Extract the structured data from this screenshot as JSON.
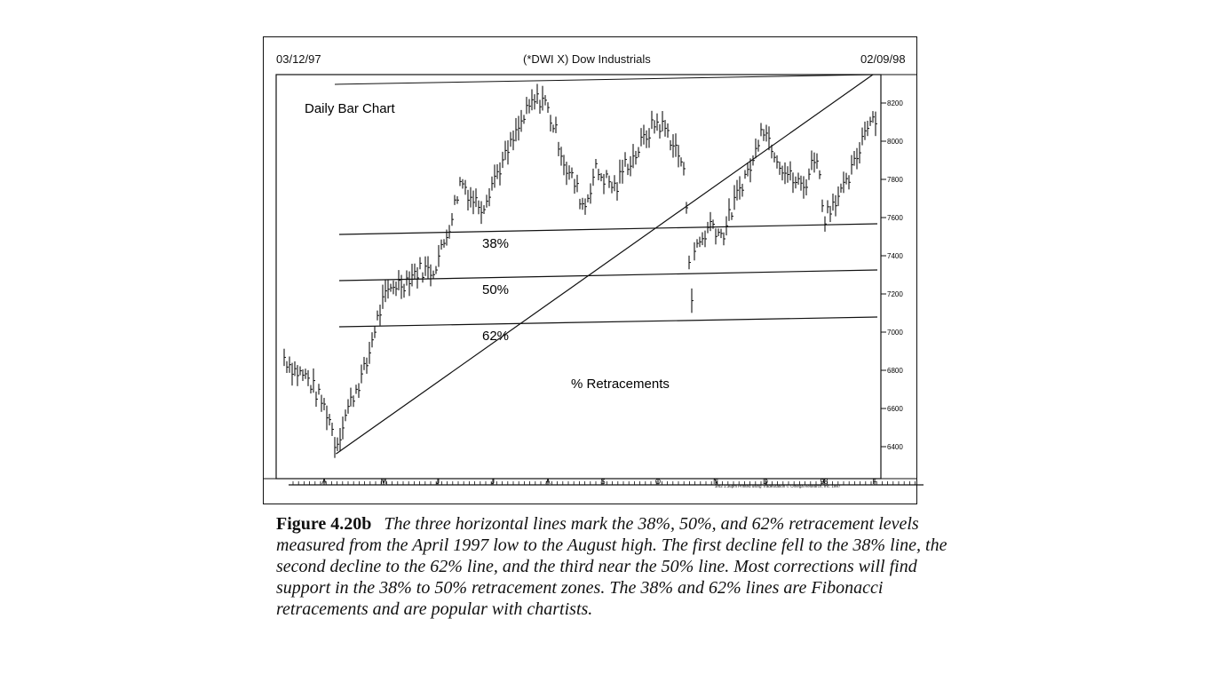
{
  "header": {
    "start_date": "03/12/97",
    "symbol_title": "(*DWI X) Dow Industrials",
    "end_date": "02/09/98"
  },
  "chart_data": {
    "type": "ohlc-bar",
    "title": "(*DWI X) Dow Industrials",
    "subtitle": "Daily Bar Chart",
    "annotation": "% Retracements",
    "credit": "3/02 1:36pm Printed using TradeStation © Omega Research, Inc. 1997",
    "x_tick_labels": [
      "A",
      "M",
      "J",
      "J",
      "A",
      "S",
      "O",
      "N",
      "D",
      "98",
      "F"
    ],
    "y_tick_labels": [
      "8200",
      "8000",
      "7800",
      "7600",
      "7400",
      "7200",
      "7000",
      "6800",
      "6600",
      "6400"
    ],
    "ylim": [
      6300,
      8300
    ],
    "retracement_levels": [
      {
        "label": "38%",
        "value": 7560
      },
      {
        "label": "50%",
        "value": 7325
      },
      {
        "label": "62%",
        "value": 7090
      }
    ],
    "trendline": {
      "from": {
        "date": "1997-04-11",
        "value": 6390
      },
      "to": {
        "date": "1998-02-06",
        "value": 8330
      }
    },
    "series": [
      {
        "values": [
          [
            "1997-03-12",
            6880
          ],
          [
            "1997-03-19",
            6800
          ],
          [
            "1997-03-26",
            6760
          ],
          [
            "1997-04-02",
            6650
          ],
          [
            "1997-04-07",
            6560
          ],
          [
            "1997-04-11",
            6400
          ],
          [
            "1997-04-16",
            6560
          ],
          [
            "1997-04-22",
            6700
          ],
          [
            "1997-04-28",
            6820
          ],
          [
            "1997-05-02",
            7000
          ],
          [
            "1997-05-07",
            7150
          ],
          [
            "1997-05-13",
            7250
          ],
          [
            "1997-05-19",
            7260
          ],
          [
            "1997-05-23",
            7300
          ],
          [
            "1997-05-29",
            7330
          ],
          [
            "1997-06-04",
            7320
          ],
          [
            "1997-06-10",
            7450
          ],
          [
            "1997-06-16",
            7650
          ],
          [
            "1997-06-20",
            7800
          ],
          [
            "1997-06-26",
            7700
          ],
          [
            "1997-07-02",
            7660
          ],
          [
            "1997-07-08",
            7800
          ],
          [
            "1997-07-14",
            7900
          ],
          [
            "1997-07-18",
            7980
          ],
          [
            "1997-07-24",
            8100
          ],
          [
            "1997-07-30",
            8200
          ],
          [
            "1997-08-05",
            8230
          ],
          [
            "1997-08-08",
            8150
          ],
          [
            "1997-08-13",
            8020
          ],
          [
            "1997-08-18",
            7850
          ],
          [
            "1997-08-22",
            7790
          ],
          [
            "1997-08-28",
            7650
          ],
          [
            "1997-09-03",
            7850
          ],
          [
            "1997-09-09",
            7800
          ],
          [
            "1997-09-15",
            7750
          ],
          [
            "1997-09-19",
            7870
          ],
          [
            "1997-09-25",
            7920
          ],
          [
            "1997-10-01",
            8020
          ],
          [
            "1997-10-07",
            8100
          ],
          [
            "1997-10-13",
            8060
          ],
          [
            "1997-10-17",
            7980
          ],
          [
            "1997-10-22",
            7880
          ],
          [
            "1997-10-24",
            7700
          ],
          [
            "1997-10-27",
            7160
          ],
          [
            "1997-10-29",
            7450
          ],
          [
            "1997-11-03",
            7500
          ],
          [
            "1997-11-07",
            7580
          ],
          [
            "1997-11-13",
            7500
          ],
          [
            "1997-11-19",
            7650
          ],
          [
            "1997-11-25",
            7800
          ],
          [
            "1997-12-01",
            7900
          ],
          [
            "1997-12-05",
            8100
          ],
          [
            "1997-12-10",
            8000
          ],
          [
            "1997-12-16",
            7880
          ],
          [
            "1997-12-22",
            7800
          ],
          [
            "1997-12-29",
            7760
          ],
          [
            "1998-01-05",
            7950
          ],
          [
            "1998-01-09",
            7600
          ],
          [
            "1998-01-15",
            7700
          ],
          [
            "1998-01-21",
            7750
          ],
          [
            "1998-01-27",
            7900
          ],
          [
            "1998-02-02",
            8100
          ],
          [
            "1998-02-09",
            8150
          ]
        ]
      }
    ],
    "grid": false
  },
  "caption": {
    "figure_label": "Figure 4.20b",
    "text": "The three horizontal lines mark the 38%, 50%, and 62% retracement levels measured from the April 1997 low to the August high. The first decline fell to the 38% line, the second decline to the 62% line, and the third near the 50% line. Most corrections will find support in the 38% to 50% retracement zones. The 38% and 62% lines are Fibonacci retracements and are popular with chartists."
  }
}
